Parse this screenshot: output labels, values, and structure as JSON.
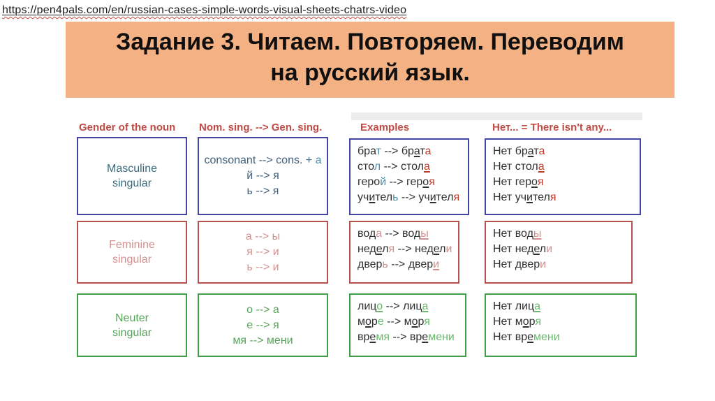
{
  "page": {
    "url": "https://pen4pals.com/en/russian-cases-simple-words-visual-sheets-chatrs-video"
  },
  "banner": {
    "title_line1": "Задание 3. Читаем. Повторяем. Переводим",
    "title_line2": "на русский язык."
  },
  "table": {
    "headers": [
      "Gender of the noun",
      "Nom. sing. --> Gen. sing.",
      "Examples",
      "Нет... = There isn't any..."
    ],
    "rows": [
      {
        "gender": "masculine",
        "label": [
          [
            {
              "t": "Masculine"
            }
          ],
          [
            {
              "t": "singular"
            }
          ]
        ],
        "rules": [
          [
            {
              "t": "consonant --> cons. + "
            },
            {
              "t": "a",
              "s": "h"
            }
          ],
          [
            {
              "t": "й --> я"
            }
          ],
          [
            {
              "t": "ь --> я"
            }
          ]
        ],
        "examples": [
          [
            {
              "t": "бра"
            },
            {
              "t": "т",
              "s": "h"
            },
            {
              "t": " --> "
            },
            {
              "t": "бр"
            },
            {
              "t": "а",
              "u": true
            },
            {
              "t": "т"
            },
            {
              "t": "а",
              "s": "e"
            }
          ],
          [
            {
              "t": "сто"
            },
            {
              "t": "л",
              "s": "h"
            },
            {
              "t": " --> "
            },
            {
              "t": "стол"
            },
            {
              "t": "а",
              "s": "e",
              "u": true
            }
          ],
          [
            {
              "t": "геро"
            },
            {
              "t": "й",
              "s": "h"
            },
            {
              "t": " --> "
            },
            {
              "t": "гер"
            },
            {
              "t": "о",
              "u": true
            },
            {
              "t": "я",
              "s": "e"
            }
          ],
          [
            {
              "t": "уч"
            },
            {
              "t": "и",
              "u": true
            },
            {
              "t": "тел"
            },
            {
              "t": "ь",
              "s": "h"
            },
            {
              "t": " --> "
            },
            {
              "t": "уч"
            },
            {
              "t": "и",
              "u": true
            },
            {
              "t": "тел"
            },
            {
              "t": "я",
              "s": "e"
            }
          ]
        ],
        "net": [
          [
            {
              "t": "Нет бр"
            },
            {
              "t": "а",
              "u": true
            },
            {
              "t": "т"
            },
            {
              "t": "а",
              "s": "e"
            }
          ],
          [
            {
              "t": "Нет стол"
            },
            {
              "t": "а",
              "s": "e",
              "u": true
            }
          ],
          [
            {
              "t": "Нет гер"
            },
            {
              "t": "о",
              "u": true
            },
            {
              "t": "я",
              "s": "e"
            }
          ],
          [
            {
              "t": "Нет уч"
            },
            {
              "t": "и",
              "u": true
            },
            {
              "t": "тел"
            },
            {
              "t": "я",
              "s": "e"
            }
          ]
        ]
      },
      {
        "gender": "feminine",
        "label": [
          [
            {
              "t": "Feminine"
            }
          ],
          [
            {
              "t": "singular"
            }
          ]
        ],
        "rules": [
          [
            {
              "t": "а --> ы"
            }
          ],
          [
            {
              "t": "я --> и"
            }
          ],
          [
            {
              "t": "ь --> и"
            }
          ]
        ],
        "examples": [
          [
            {
              "t": "вод"
            },
            {
              "t": "а",
              "s": "h"
            },
            {
              "t": " --> "
            },
            {
              "t": "вод"
            },
            {
              "t": "ы",
              "s": "e",
              "u": true
            }
          ],
          [
            {
              "t": "нед"
            },
            {
              "t": "е",
              "u": true
            },
            {
              "t": "л"
            },
            {
              "t": "я",
              "s": "h"
            },
            {
              "t": " --> "
            },
            {
              "t": "нед"
            },
            {
              "t": "е",
              "u": true
            },
            {
              "t": "л"
            },
            {
              "t": "и",
              "s": "e"
            }
          ],
          [
            {
              "t": "двер"
            },
            {
              "t": "ь",
              "s": "h"
            },
            {
              "t": " --> "
            },
            {
              "t": "двер"
            },
            {
              "t": "и",
              "s": "e",
              "u": true
            }
          ]
        ],
        "net": [
          [
            {
              "t": "Нет вод"
            },
            {
              "t": "ы",
              "s": "e",
              "u": true
            }
          ],
          [
            {
              "t": "Нет нед"
            },
            {
              "t": "е",
              "u": true
            },
            {
              "t": "л"
            },
            {
              "t": "и",
              "s": "e"
            }
          ],
          [
            {
              "t": "Нет двер"
            },
            {
              "t": "и",
              "s": "e"
            }
          ]
        ]
      },
      {
        "gender": "neuter",
        "label": [
          [
            {
              "t": "Neuter"
            }
          ],
          [
            {
              "t": "singular"
            }
          ]
        ],
        "rules": [
          [
            {
              "t": "о --> а"
            }
          ],
          [
            {
              "t": "е --> я"
            }
          ],
          [
            {
              "t": "мя --> мени"
            }
          ]
        ],
        "examples": [
          [
            {
              "t": "лиц"
            },
            {
              "t": "о",
              "s": "h",
              "u": true
            },
            {
              "t": " --> "
            },
            {
              "t": "лиц"
            },
            {
              "t": "а",
              "s": "e",
              "u": true
            }
          ],
          [
            {
              "t": "м"
            },
            {
              "t": "о",
              "u": true
            },
            {
              "t": "р"
            },
            {
              "t": "е",
              "s": "h"
            },
            {
              "t": " --> "
            },
            {
              "t": "м"
            },
            {
              "t": "о",
              "u": true
            },
            {
              "t": "р"
            },
            {
              "t": "я",
              "s": "e"
            }
          ],
          [
            {
              "t": "вр"
            },
            {
              "t": "е",
              "u": true
            },
            {
              "t": "мя",
              "s": "h"
            },
            {
              "t": " --> "
            },
            {
              "t": "вр"
            },
            {
              "t": "е",
              "u": true
            },
            {
              "t": "мени",
              "s": "e"
            }
          ]
        ],
        "net": [
          [
            {
              "t": "Нет лиц"
            },
            {
              "t": "а",
              "s": "e",
              "u": true
            }
          ],
          [
            {
              "t": "Нет м"
            },
            {
              "t": "о",
              "u": true
            },
            {
              "t": "р"
            },
            {
              "t": "я",
              "s": "e"
            }
          ],
          [
            {
              "t": "Нет вр"
            },
            {
              "t": "е",
              "u": true
            },
            {
              "t": "мени",
              "s": "e"
            }
          ]
        ]
      }
    ]
  },
  "colors": {
    "banner-bg": "#f4b183",
    "header-text": "#c04a44",
    "base-text": "#2f2f2f",
    "link-squiggle": "#c94f43",
    "masc-border": "#4545a5",
    "masc-label": "#3a6a7d",
    "masc-rules": "#41607c",
    "masc-highlight": "#4d8fa6",
    "masc-ending": "#c43b2c",
    "fem-border": "#b5524e",
    "fem-text": "#d28f8d",
    "neut-border": "#3fa046",
    "neut-label": "#58a35a",
    "neut-accent": "#6ab96c"
  }
}
